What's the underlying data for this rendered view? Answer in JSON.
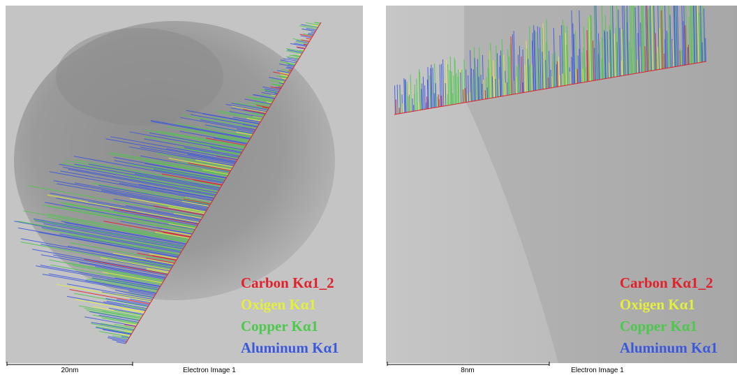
{
  "panels": [
    {
      "legend": [
        {
          "label": "Carbon Kα1_2",
          "color": "#e0202a"
        },
        {
          "label": "Oxigen Kα1",
          "color": "#e4f03c"
        },
        {
          "label": "Copper Kα1",
          "color": "#4cc84c"
        },
        {
          "label": "Aluminum Kα1",
          "color": "#3a58dc"
        }
      ],
      "scale_label": "20nm",
      "caption": "Electron Image 1"
    },
    {
      "legend": [
        {
          "label": "Carbon Kα1_2",
          "color": "#e0202a"
        },
        {
          "label": "Oxigen Kα1",
          "color": "#e4f03c"
        },
        {
          "label": "Copper Kα1",
          "color": "#4cc84c"
        },
        {
          "label": "Aluminum Kα1",
          "color": "#3a58dc"
        }
      ],
      "scale_label": "8nm",
      "caption": "Electron Image 1"
    }
  ]
}
